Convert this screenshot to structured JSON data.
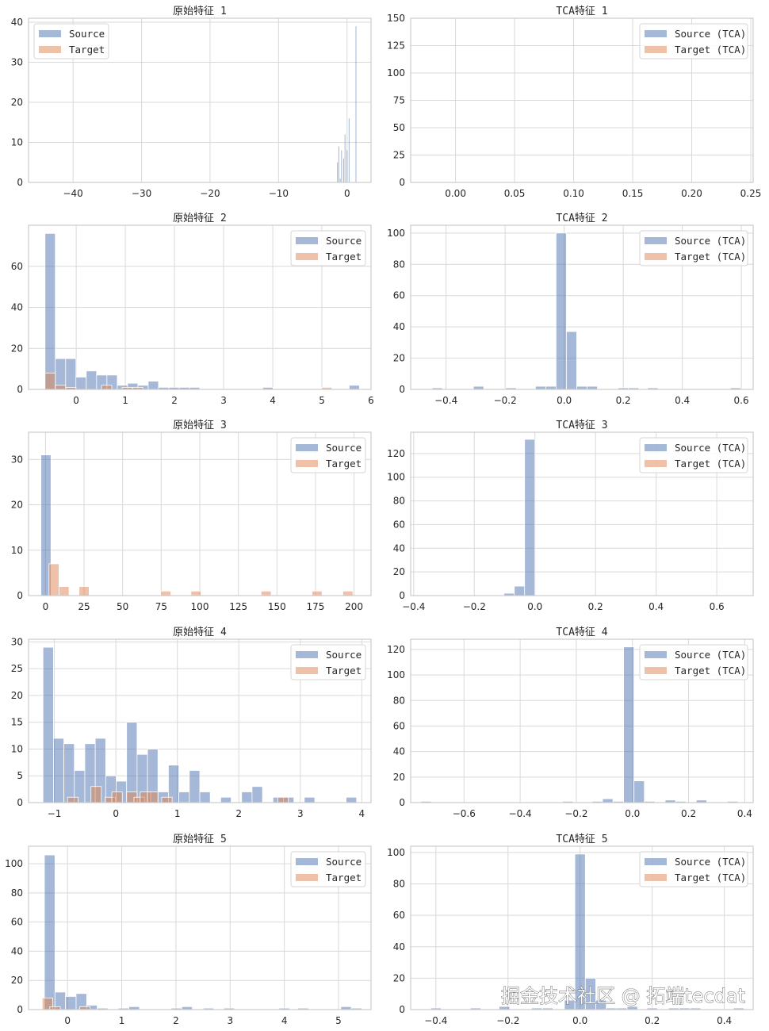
{
  "colors": {
    "source": "#8da0cb",
    "target": "#e8a987",
    "source_fill": "#4c72b0",
    "target_fill": "#dd8452",
    "grid": "#d9d9d9",
    "frame": "#cccccc",
    "background": "#ffffff"
  },
  "watermark": "掘金技术社区 @ 拓端tecdat",
  "chart_data": [
    {
      "type": "bar",
      "title": "原始特征 1",
      "legend": [
        "Source",
        "Target"
      ],
      "legend_position": "top-left",
      "xlim": [
        -46.5,
        3.5
      ],
      "ylim": [
        0,
        41
      ],
      "xticks": [
        -40,
        -30,
        -20,
        -10,
        0
      ],
      "xtick_labels": [
        "−40",
        "−30",
        "−20",
        "−10",
        "0"
      ],
      "yticks": [
        0,
        10,
        20,
        30,
        40
      ],
      "ytick_labels": [
        "0",
        "10",
        "20",
        "30",
        "40"
      ],
      "grid": true,
      "bin_width": 0.12,
      "series": [
        {
          "name": "Source",
          "x": [
            -1.4,
            -1.2,
            -1.0,
            -0.8,
            -0.5,
            -0.3,
            0.0,
            0.3,
            1.3
          ],
          "values": [
            5,
            9,
            1,
            8,
            6,
            12,
            8,
            16,
            39
          ]
        },
        {
          "name": "Target",
          "x": [],
          "values": []
        }
      ]
    },
    {
      "type": "bar",
      "title": "TCA特征 1",
      "legend": [
        "Source (TCA)",
        "Target (TCA)"
      ],
      "legend_position": "top-right",
      "xlim": [
        -0.038,
        0.252
      ],
      "ylim": [
        0,
        150
      ],
      "xticks": [
        0.0,
        0.05,
        0.1,
        0.15,
        0.2,
        0.25
      ],
      "xtick_labels": [
        "0.00",
        "0.05",
        "0.10",
        "0.15",
        "0.20",
        "0.25"
      ],
      "yticks": [
        0,
        25,
        50,
        75,
        100,
        125,
        150
      ],
      "ytick_labels": [
        "0",
        "25",
        "50",
        "75",
        "100",
        "125",
        "150"
      ],
      "grid": true,
      "bin_width": 0.0,
      "series": [
        {
          "name": "Source (TCA)",
          "x": [],
          "values": []
        },
        {
          "name": "Target (TCA)",
          "x": [],
          "values": []
        }
      ]
    },
    {
      "type": "bar",
      "title": "原始特征 2",
      "legend": [
        "Source",
        "Target"
      ],
      "legend_position": "top-right",
      "xlim": [
        -0.97,
        6.0
      ],
      "ylim": [
        0,
        80
      ],
      "xticks": [
        0,
        1,
        2,
        3,
        4,
        5,
        6
      ],
      "xtick_labels": [
        "0",
        "1",
        "2",
        "3",
        "4",
        "5",
        "6"
      ],
      "yticks": [
        0,
        20,
        40,
        60
      ],
      "ytick_labels": [
        "0",
        "20",
        "40",
        "60"
      ],
      "grid": true,
      "bin_width": 0.21,
      "series": [
        {
          "name": "Source",
          "x": [
            -0.53,
            -0.32,
            -0.11,
            0.1,
            0.31,
            0.52,
            0.73,
            0.94,
            1.15,
            1.36,
            1.57,
            1.78,
            1.99,
            2.2,
            2.41,
            3.9,
            5.66
          ],
          "values": [
            76,
            15,
            15,
            6,
            9,
            7,
            7,
            2,
            3,
            2,
            4,
            1,
            1,
            1,
            1,
            1,
            2
          ]
        },
        {
          "name": "Target",
          "x": [
            -0.53,
            -0.32,
            -0.11,
            0.62,
            1.04,
            1.25,
            5.1
          ],
          "values": [
            8,
            2,
            1,
            2,
            1,
            1,
            1
          ]
        }
      ]
    },
    {
      "type": "bar",
      "title": "TCA特征 2",
      "legend": [
        "Source (TCA)",
        "Target (TCA)"
      ],
      "legend_position": "top-right",
      "xlim": [
        -0.52,
        0.64
      ],
      "ylim": [
        0,
        105
      ],
      "xticks": [
        -0.4,
        -0.2,
        0.0,
        0.2,
        0.4,
        0.6
      ],
      "xtick_labels": [
        "−0.4",
        "−0.2",
        "0.0",
        "0.2",
        "0.4",
        "0.6"
      ],
      "yticks": [
        0,
        20,
        40,
        60,
        80,
        100
      ],
      "ytick_labels": [
        "0",
        "20",
        "40",
        "60",
        "80",
        "100"
      ],
      "grid": true,
      "bin_width": 0.035,
      "series": [
        {
          "name": "Source (TCA)",
          "x": [
            -0.43,
            -0.29,
            -0.18,
            -0.08,
            -0.045,
            -0.01,
            0.025,
            0.06,
            0.095,
            0.2,
            0.235,
            0.3,
            0.58
          ],
          "values": [
            1,
            2,
            1,
            2,
            2,
            100,
            37,
            2,
            2,
            1,
            1,
            1,
            1
          ]
        },
        {
          "name": "Target (TCA)",
          "x": [],
          "values": []
        }
      ]
    },
    {
      "type": "bar",
      "title": "原始特征 3",
      "legend": [
        "Source",
        "Target"
      ],
      "legend_position": "top-right",
      "xlim": [
        -11,
        211
      ],
      "ylim": [
        0,
        36
      ],
      "xticks": [
        0,
        25,
        50,
        75,
        100,
        125,
        150,
        175,
        200
      ],
      "xtick_labels": [
        "0",
        "25",
        "50",
        "75",
        "100",
        "125",
        "150",
        "175",
        "200"
      ],
      "yticks": [
        0,
        10,
        20,
        30
      ],
      "ytick_labels": [
        "0",
        "10",
        "20",
        "30"
      ],
      "grid": true,
      "bin_width": 6.5,
      "series": [
        {
          "name": "Source",
          "x": [
            0.3
          ],
          "values": [
            31
          ]
        },
        {
          "name": "Target",
          "x": [
            5.5,
            12,
            25,
            78,
            97.5,
            143,
            176,
            196
          ],
          "values": [
            7,
            2,
            2,
            1,
            1,
            1,
            1,
            1
          ]
        }
      ]
    },
    {
      "type": "bar",
      "title": "TCA特征 3",
      "legend": [
        "Source (TCA)",
        "Target (TCA)"
      ],
      "legend_position": "top-right",
      "xlim": [
        -0.41,
        0.72
      ],
      "ylim": [
        0,
        138
      ],
      "xticks": [
        -0.4,
        -0.2,
        0.0,
        0.2,
        0.4,
        0.6
      ],
      "xtick_labels": [
        "−0.4",
        "−0.2",
        "0.0",
        "0.2",
        "0.4",
        "0.6"
      ],
      "yticks": [
        0,
        20,
        40,
        60,
        80,
        100,
        120
      ],
      "ytick_labels": [
        "0",
        "20",
        "40",
        "60",
        "80",
        "100",
        "120"
      ],
      "grid": true,
      "bin_width": 0.034,
      "series": [
        {
          "name": "Source (TCA)",
          "x": [
            -0.085,
            -0.051,
            -0.017
          ],
          "values": [
            2,
            8,
            132
          ]
        },
        {
          "name": "Target (TCA)",
          "x": [],
          "values": []
        }
      ]
    },
    {
      "type": "bar",
      "title": "原始特征 4",
      "legend": [
        "Source",
        "Target"
      ],
      "legend_position": "top-right",
      "xlim": [
        -1.42,
        4.15
      ],
      "ylim": [
        0,
        30.5
      ],
      "xticks": [
        -1,
        0,
        1,
        2,
        3,
        4
      ],
      "xtick_labels": [
        "−1",
        "0",
        "1",
        "2",
        "3",
        "4"
      ],
      "yticks": [
        0,
        5,
        10,
        15,
        20,
        25,
        30
      ],
      "ytick_labels": [
        "0",
        "5",
        "10",
        "15",
        "20",
        "25",
        "30"
      ],
      "grid": true,
      "bin_width": 0.17,
      "series": [
        {
          "name": "Source",
          "x": [
            -1.1,
            -0.93,
            -0.76,
            -0.59,
            -0.42,
            -0.25,
            -0.08,
            0.09,
            0.26,
            0.43,
            0.6,
            0.77,
            0.94,
            1.11,
            1.28,
            1.45,
            1.79,
            2.13,
            2.3,
            2.64,
            2.81,
            3.15,
            3.83
          ],
          "values": [
            29,
            12,
            11,
            6,
            11,
            12,
            5,
            4,
            15,
            9,
            10,
            2,
            7,
            2,
            6,
            2,
            1,
            2,
            3,
            1,
            1,
            1,
            1
          ]
        },
        {
          "name": "Target",
          "x": [
            -0.7,
            -0.32,
            -0.09,
            0.02,
            0.26,
            0.38,
            0.48,
            0.6,
            0.83,
            2.72
          ],
          "values": [
            1,
            3,
            1,
            2,
            2,
            1,
            2,
            2,
            1,
            1
          ]
        }
      ]
    },
    {
      "type": "bar",
      "title": "TCA特征 4",
      "legend": [
        "Source (TCA)",
        "Target (TCA)"
      ],
      "legend_position": "top-right",
      "xlim": [
        -0.79,
        0.43
      ],
      "ylim": [
        0,
        128
      ],
      "xticks": [
        -0.6,
        -0.4,
        -0.2,
        0.0,
        0.2,
        0.4
      ],
      "xtick_labels": [
        "−0.6",
        "−0.4",
        "−0.2",
        "0.0",
        "0.2",
        "0.4"
      ],
      "yticks": [
        0,
        20,
        40,
        60,
        80,
        100,
        120
      ],
      "ytick_labels": [
        "0",
        "20",
        "40",
        "60",
        "80",
        "100",
        "120"
      ],
      "grid": true,
      "bin_width": 0.037,
      "series": [
        {
          "name": "Source (TCA)",
          "x": [
            -0.735,
            -0.23,
            -0.125,
            -0.088,
            -0.05,
            -0.013,
            0.024,
            0.061,
            0.135,
            0.172,
            0.246,
            0.357
          ],
          "values": [
            1,
            1,
            1,
            3,
            1,
            122,
            17,
            1,
            2,
            1,
            2,
            1
          ]
        },
        {
          "name": "Target (TCA)",
          "x": [],
          "values": []
        }
      ]
    },
    {
      "type": "bar",
      "title": "原始特征 5",
      "legend": [
        "Source",
        "Target"
      ],
      "legend_position": "top-right",
      "xlim": [
        -0.72,
        5.6
      ],
      "ylim": [
        0,
        112
      ],
      "xticks": [
        0,
        1,
        2,
        3,
        4,
        5
      ],
      "xtick_labels": [
        "0",
        "1",
        "2",
        "3",
        "4",
        "5"
      ],
      "yticks": [
        0,
        20,
        40,
        60,
        80,
        100
      ],
      "ytick_labels": [
        "0",
        "20",
        "40",
        "60",
        "80",
        "100"
      ],
      "grid": true,
      "bin_width": 0.195,
      "series": [
        {
          "name": "Source",
          "x": [
            -0.33,
            -0.135,
            0.06,
            0.255,
            0.45,
            0.645,
            1.035,
            1.23,
            2.01,
            2.205,
            2.6,
            2.98,
            4.0,
            4.35,
            5.14,
            5.33
          ],
          "values": [
            106,
            12,
            9,
            11,
            3,
            1,
            1,
            2,
            1,
            2,
            1,
            1,
            1,
            1,
            2,
            1
          ]
        },
        {
          "name": "Target",
          "x": [
            -0.37,
            -0.23,
            0.32
          ],
          "values": [
            8,
            2,
            2
          ]
        }
      ]
    },
    {
      "type": "bar",
      "title": "TCA特征 5",
      "legend": [
        "Source (TCA)",
        "Target (TCA)"
      ],
      "legend_position": "top-right",
      "xlim": [
        -0.47,
        0.48
      ],
      "ylim": [
        0,
        104
      ],
      "xticks": [
        -0.4,
        -0.2,
        0.0,
        0.2,
        0.4
      ],
      "xtick_labels": [
        "−0.4",
        "−0.2",
        "0.0",
        "0.2",
        "0.4"
      ],
      "yticks": [
        0,
        20,
        40,
        60,
        80,
        100
      ],
      "ytick_labels": [
        "0",
        "20",
        "40",
        "60",
        "80",
        "100"
      ],
      "grid": true,
      "bin_width": 0.029,
      "series": [
        {
          "name": "Source (TCA)",
          "x": [
            -0.4,
            -0.29,
            -0.21,
            -0.12,
            -0.09,
            -0.029,
            0.0,
            0.029,
            0.058,
            0.087,
            0.116,
            0.145,
            0.2,
            0.26,
            0.29,
            0.32,
            0.44
          ],
          "values": [
            1,
            1,
            2,
            1,
            1,
            6,
            99,
            20,
            6,
            1,
            1,
            2,
            1,
            1,
            1,
            1,
            1
          ]
        },
        {
          "name": "Target (TCA)",
          "x": [],
          "values": []
        }
      ]
    }
  ]
}
